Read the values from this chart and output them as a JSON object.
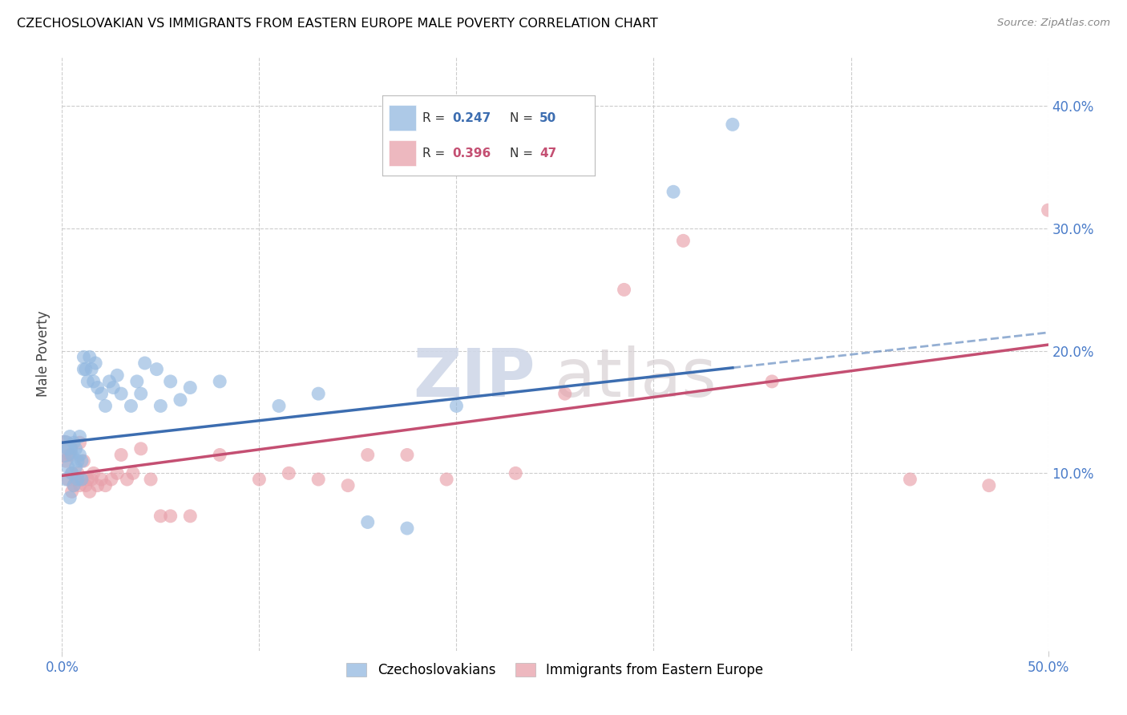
{
  "title": "CZECHOSLOVAKIAN VS IMMIGRANTS FROM EASTERN EUROPE MALE POVERTY CORRELATION CHART",
  "source": "Source: ZipAtlas.com",
  "ylabel": "Male Poverty",
  "xlim": [
    0.0,
    0.5
  ],
  "ylim": [
    -0.045,
    0.44
  ],
  "xticks": [
    0.0,
    0.5
  ],
  "xticklabels": [
    "0.0%",
    "50.0%"
  ],
  "right_yticks": [
    0.1,
    0.2,
    0.3,
    0.4
  ],
  "right_yticklabels": [
    "10.0%",
    "20.0%",
    "30.0%",
    "40.0%"
  ],
  "legend_labels": [
    "Czechoslovakians",
    "Immigrants from Eastern Europe"
  ],
  "blue_color": "#92b8e0",
  "pink_color": "#e8a0aa",
  "blue_line_color": "#3c6db0",
  "pink_line_color": "#c44f72",
  "blue_R": "0.247",
  "blue_N": "50",
  "pink_R": "0.396",
  "pink_N": "47",
  "watermark_zip": "ZIP",
  "watermark_atlas": "atlas",
  "blue_line_solid_end": 0.34,
  "blue_line_start_y": 0.125,
  "blue_line_end_y": 0.215,
  "pink_line_start_y": 0.098,
  "pink_line_end_y": 0.205,
  "blue_scatter_x": [
    0.001,
    0.002,
    0.003,
    0.003,
    0.004,
    0.004,
    0.005,
    0.005,
    0.006,
    0.006,
    0.007,
    0.007,
    0.008,
    0.008,
    0.009,
    0.009,
    0.01,
    0.01,
    0.011,
    0.011,
    0.012,
    0.013,
    0.014,
    0.015,
    0.016,
    0.017,
    0.018,
    0.02,
    0.022,
    0.024,
    0.026,
    0.028,
    0.03,
    0.035,
    0.038,
    0.04,
    0.042,
    0.048,
    0.05,
    0.055,
    0.06,
    0.065,
    0.08,
    0.11,
    0.13,
    0.155,
    0.175,
    0.2,
    0.31,
    0.34
  ],
  "blue_scatter_y": [
    0.12,
    0.095,
    0.105,
    0.12,
    0.08,
    0.13,
    0.1,
    0.115,
    0.09,
    0.125,
    0.105,
    0.12,
    0.11,
    0.095,
    0.115,
    0.13,
    0.095,
    0.11,
    0.185,
    0.195,
    0.185,
    0.175,
    0.195,
    0.185,
    0.175,
    0.19,
    0.17,
    0.165,
    0.155,
    0.175,
    0.17,
    0.18,
    0.165,
    0.155,
    0.175,
    0.165,
    0.19,
    0.185,
    0.155,
    0.175,
    0.16,
    0.17,
    0.175,
    0.155,
    0.165,
    0.06,
    0.055,
    0.155,
    0.33,
    0.385
  ],
  "blue_scatter_size": [
    600,
    150,
    150,
    150,
    150,
    150,
    150,
    150,
    150,
    150,
    150,
    150,
    150,
    150,
    150,
    150,
    150,
    150,
    150,
    150,
    150,
    150,
    150,
    150,
    150,
    150,
    150,
    150,
    150,
    150,
    150,
    150,
    150,
    150,
    150,
    150,
    150,
    150,
    150,
    150,
    150,
    150,
    150,
    150,
    150,
    150,
    150,
    150,
    150,
    150
  ],
  "pink_scatter_x": [
    0.001,
    0.002,
    0.003,
    0.004,
    0.005,
    0.005,
    0.006,
    0.007,
    0.008,
    0.009,
    0.009,
    0.01,
    0.011,
    0.012,
    0.013,
    0.014,
    0.015,
    0.016,
    0.018,
    0.02,
    0.022,
    0.025,
    0.028,
    0.03,
    0.033,
    0.036,
    0.04,
    0.045,
    0.05,
    0.055,
    0.065,
    0.08,
    0.1,
    0.115,
    0.13,
    0.145,
    0.155,
    0.175,
    0.195,
    0.23,
    0.255,
    0.285,
    0.315,
    0.36,
    0.43,
    0.47,
    0.5
  ],
  "pink_scatter_y": [
    0.12,
    0.11,
    0.095,
    0.115,
    0.085,
    0.1,
    0.09,
    0.095,
    0.1,
    0.09,
    0.125,
    0.095,
    0.11,
    0.09,
    0.095,
    0.085,
    0.095,
    0.1,
    0.09,
    0.095,
    0.09,
    0.095,
    0.1,
    0.115,
    0.095,
    0.1,
    0.12,
    0.095,
    0.065,
    0.065,
    0.065,
    0.115,
    0.095,
    0.1,
    0.095,
    0.09,
    0.115,
    0.115,
    0.095,
    0.1,
    0.165,
    0.25,
    0.29,
    0.175,
    0.095,
    0.09,
    0.315
  ],
  "pink_scatter_size": [
    600,
    150,
    150,
    150,
    150,
    150,
    150,
    150,
    150,
    150,
    150,
    150,
    150,
    150,
    150,
    150,
    150,
    150,
    150,
    150,
    150,
    150,
    150,
    150,
    150,
    150,
    150,
    150,
    150,
    150,
    150,
    150,
    150,
    150,
    150,
    150,
    150,
    150,
    150,
    150,
    150,
    150,
    150,
    150,
    150,
    150,
    150
  ]
}
